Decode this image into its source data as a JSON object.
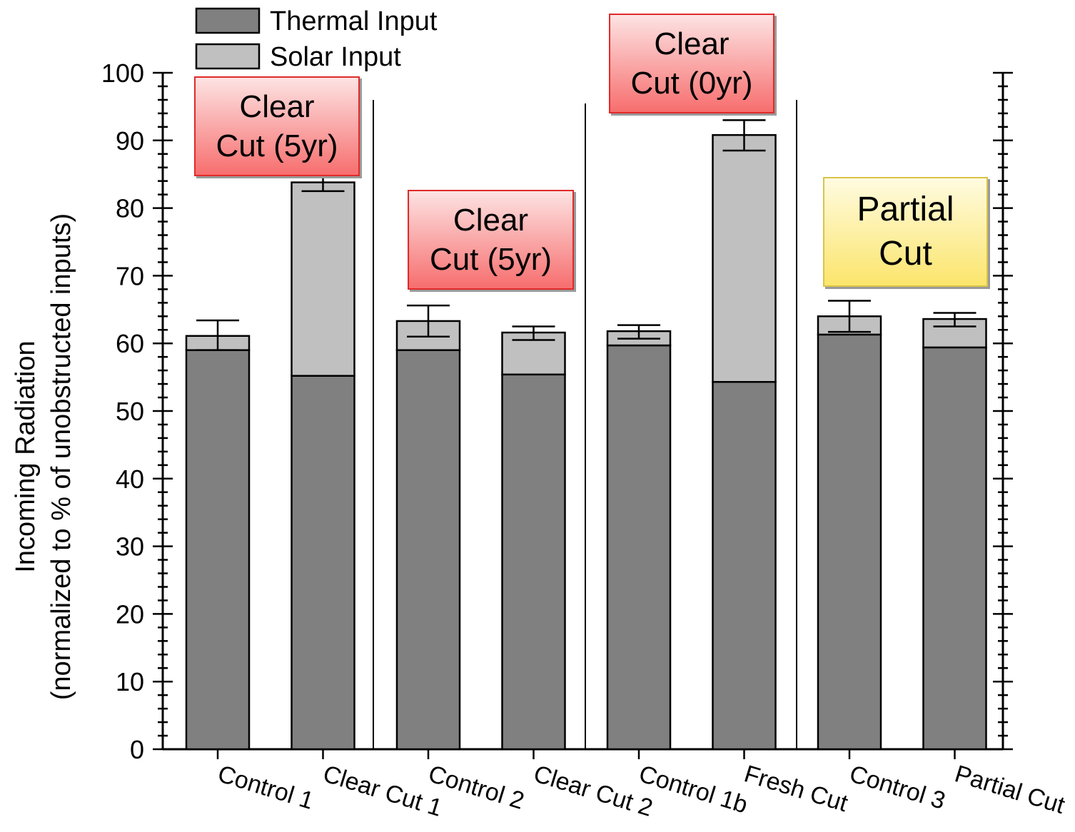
{
  "chart_data": {
    "type": "bar",
    "stacked": true,
    "categories": [
      "Control 1",
      "Clear Cut 1",
      "Control 2",
      "Clear Cut 2",
      "Control 1b",
      "Fresh Cut",
      "Control 3",
      "Partial Cut"
    ],
    "series": [
      {
        "name": "Thermal Input",
        "values": [
          59.0,
          55.2,
          59.0,
          55.4,
          59.7,
          54.3,
          61.3,
          59.4
        ]
      },
      {
        "name": "Solar Input",
        "values": [
          2.1,
          28.6,
          4.3,
          6.2,
          2.1,
          36.5,
          2.7,
          4.2
        ]
      }
    ],
    "error_bars": [
      {
        "low": 59.0,
        "high": 63.4
      },
      {
        "low": 82.5,
        "high": 85.0
      },
      {
        "low": 61.0,
        "high": 65.6
      },
      {
        "low": 60.5,
        "high": 62.5
      },
      {
        "low": 60.7,
        "high": 62.7
      },
      {
        "low": 88.5,
        "high": 93.0
      },
      {
        "low": 61.7,
        "high": 66.3
      },
      {
        "low": 62.5,
        "high": 64.5
      }
    ],
    "title": "",
    "xlabel": "",
    "ylabel": "Incoming Radiation",
    "ylabel_line2": "(normalized to % of unobstructed inputs)",
    "ylim": [
      0,
      100
    ],
    "yticks": [
      0,
      10,
      20,
      30,
      40,
      50,
      60,
      70,
      80,
      90,
      100
    ],
    "legend_position": "top-left",
    "grid": false,
    "annotations": [
      {
        "text": "Clear\nCut (5yr)",
        "style": "red"
      },
      {
        "text": "Clear\nCut (5yr)",
        "style": "red"
      },
      {
        "text": "Clear\nCut (0yr)",
        "style": "red"
      },
      {
        "text": "Partial\nCut",
        "style": "yellow"
      }
    ],
    "colors": {
      "thermal": "#808080",
      "solar": "#c0c0c0",
      "outline": "#000000"
    }
  }
}
